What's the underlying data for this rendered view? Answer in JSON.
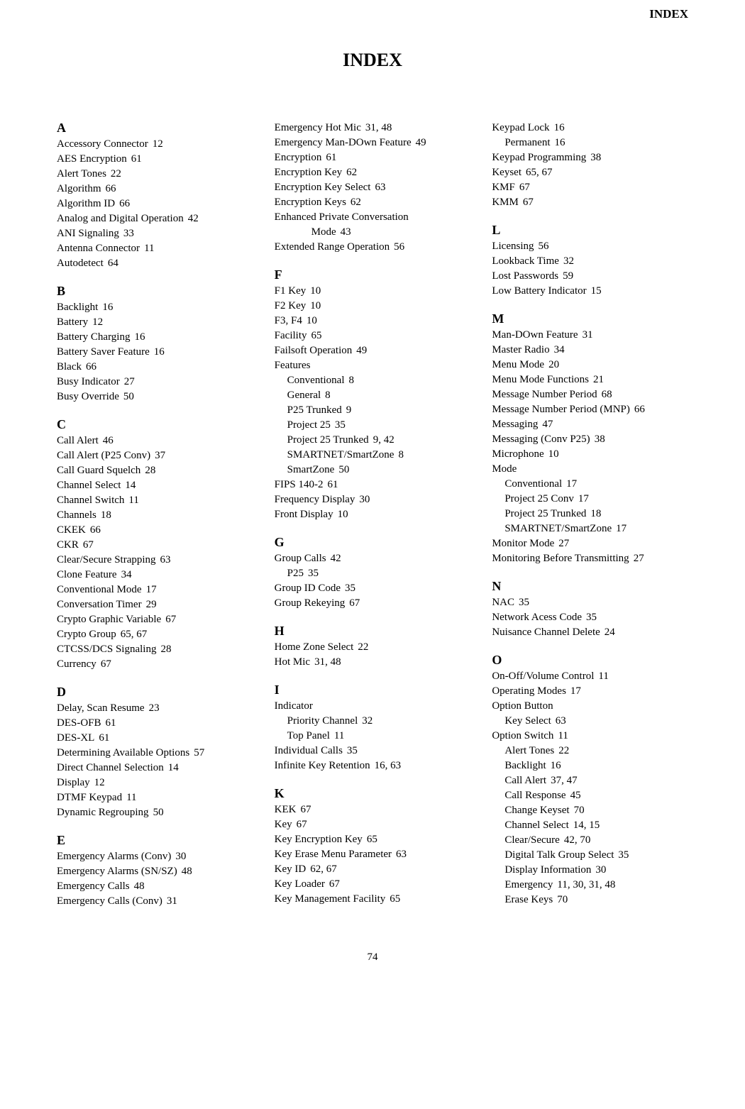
{
  "header": "INDEX",
  "title": "INDEX",
  "pagenum": "74",
  "columns": [
    [
      {
        "type": "letter",
        "text": "A"
      },
      {
        "type": "entry",
        "text": "Accessory Connector",
        "pages": "12"
      },
      {
        "type": "entry",
        "text": "AES Encryption",
        "pages": "61"
      },
      {
        "type": "entry",
        "text": "Alert Tones",
        "pages": "22"
      },
      {
        "type": "entry",
        "text": "Algorithm",
        "pages": "66"
      },
      {
        "type": "entry",
        "text": "Algorithm ID",
        "pages": "66"
      },
      {
        "type": "entry",
        "text": "Analog and Digital Operation",
        "pages": "42"
      },
      {
        "type": "entry",
        "text": "ANI Signaling",
        "pages": "33"
      },
      {
        "type": "entry",
        "text": "Antenna Connector",
        "pages": "11"
      },
      {
        "type": "entry",
        "text": "Autodetect",
        "pages": "64"
      },
      {
        "type": "letter",
        "text": "B"
      },
      {
        "type": "entry",
        "text": "Backlight",
        "pages": "16"
      },
      {
        "type": "entry",
        "text": "Battery",
        "pages": "12"
      },
      {
        "type": "entry",
        "text": "Battery Charging",
        "pages": "16"
      },
      {
        "type": "entry",
        "text": "Battery Saver Feature",
        "pages": "16"
      },
      {
        "type": "entry",
        "text": "Black",
        "pages": "66"
      },
      {
        "type": "entry",
        "text": "Busy Indicator",
        "pages": "27"
      },
      {
        "type": "entry",
        "text": "Busy Override",
        "pages": "50"
      },
      {
        "type": "letter",
        "text": "C"
      },
      {
        "type": "entry",
        "text": "Call Alert",
        "pages": "46"
      },
      {
        "type": "entry",
        "text": "Call Alert (P25 Conv)",
        "pages": "37"
      },
      {
        "type": "entry",
        "text": "Call Guard Squelch",
        "pages": "28"
      },
      {
        "type": "entry",
        "text": "Channel Select",
        "pages": "14"
      },
      {
        "type": "entry",
        "text": "Channel Switch",
        "pages": "11"
      },
      {
        "type": "entry",
        "text": "Channels",
        "pages": "18"
      },
      {
        "type": "entry",
        "text": "CKEK",
        "pages": "66"
      },
      {
        "type": "entry",
        "text": "CKR",
        "pages": "67"
      },
      {
        "type": "entry",
        "text": "Clear/Secure Strapping",
        "pages": "63"
      },
      {
        "type": "entry",
        "text": "Clone Feature",
        "pages": "34"
      },
      {
        "type": "entry",
        "text": "Conventional Mode",
        "pages": "17"
      },
      {
        "type": "entry",
        "text": "Conversation Timer",
        "pages": "29"
      },
      {
        "type": "entry",
        "text": "Crypto Graphic Variable",
        "pages": "67"
      },
      {
        "type": "entry",
        "text": "Crypto Group",
        "pages": "65, 67"
      },
      {
        "type": "entry",
        "text": "CTCSS/DCS Signaling",
        "pages": "28"
      },
      {
        "type": "entry",
        "text": "Currency",
        "pages": "67"
      },
      {
        "type": "letter",
        "text": "D"
      },
      {
        "type": "entry",
        "text": "Delay, Scan Resume",
        "pages": "23"
      },
      {
        "type": "entry",
        "text": "DES-OFB",
        "pages": "61"
      },
      {
        "type": "entry",
        "text": "DES-XL",
        "pages": "61"
      },
      {
        "type": "entry",
        "text": "Determining Available Options",
        "pages": "57"
      },
      {
        "type": "entry",
        "text": "Direct Channel Selection",
        "pages": "14"
      },
      {
        "type": "entry",
        "text": "Display",
        "pages": "12"
      },
      {
        "type": "entry",
        "text": "DTMF Keypad",
        "pages": "11"
      },
      {
        "type": "entry",
        "text": "Dynamic Regrouping",
        "pages": "50"
      },
      {
        "type": "letter",
        "text": "E"
      },
      {
        "type": "entry",
        "text": "Emergency Alarms (Conv)",
        "pages": "30"
      },
      {
        "type": "entry",
        "text": "Emergency Alarms (SN/SZ)",
        "pages": "48"
      },
      {
        "type": "entry",
        "text": "Emergency Calls",
        "pages": "48"
      },
      {
        "type": "entry",
        "text": "Emergency Calls (Conv)",
        "pages": "31"
      }
    ],
    [
      {
        "type": "entry",
        "text": "Emergency Hot Mic",
        "pages": "31, 48"
      },
      {
        "type": "entry",
        "text": "Emergency Man-DOwn Feature",
        "pages": "49"
      },
      {
        "type": "entry",
        "text": "Encryption",
        "pages": "61"
      },
      {
        "type": "entry",
        "text": "Encryption Key",
        "pages": "62"
      },
      {
        "type": "entry",
        "text": "Encryption Key Select",
        "pages": "63"
      },
      {
        "type": "entry",
        "text": "Encryption Keys",
        "pages": "62"
      },
      {
        "type": "entry",
        "text": "Enhanced Private Conversation",
        "pages": ""
      },
      {
        "type": "entry",
        "indent": 2,
        "text": "Mode",
        "pages": "43"
      },
      {
        "type": "entry",
        "text": "Extended Range Operation",
        "pages": "56"
      },
      {
        "type": "letter",
        "text": "F"
      },
      {
        "type": "entry",
        "text": "F1 Key",
        "pages": "10"
      },
      {
        "type": "entry",
        "text": "F2 Key",
        "pages": "10"
      },
      {
        "type": "entry",
        "text": "F3, F4",
        "pages": "10"
      },
      {
        "type": "entry",
        "text": "Facility",
        "pages": "65"
      },
      {
        "type": "entry",
        "text": "Failsoft Operation",
        "pages": "49"
      },
      {
        "type": "entry",
        "text": "Features",
        "pages": ""
      },
      {
        "type": "entry",
        "indent": 1,
        "text": "Conventional",
        "pages": "8"
      },
      {
        "type": "entry",
        "indent": 1,
        "text": "General",
        "pages": "8"
      },
      {
        "type": "entry",
        "indent": 1,
        "text": "P25 Trunked",
        "pages": "9"
      },
      {
        "type": "entry",
        "indent": 1,
        "text": "Project 25",
        "pages": "35"
      },
      {
        "type": "entry",
        "indent": 1,
        "text": "Project 25 Trunked",
        "pages": "9, 42"
      },
      {
        "type": "entry",
        "indent": 1,
        "text": "SMARTNET/SmartZone",
        "pages": "8"
      },
      {
        "type": "entry",
        "indent": 1,
        "text": "SmartZone",
        "pages": "50"
      },
      {
        "type": "entry",
        "text": "FIPS 140-2",
        "pages": "61"
      },
      {
        "type": "entry",
        "text": "Frequency Display",
        "pages": "30"
      },
      {
        "type": "entry",
        "text": "Front Display",
        "pages": "10"
      },
      {
        "type": "letter",
        "text": "G"
      },
      {
        "type": "entry",
        "text": "Group Calls",
        "pages": "42"
      },
      {
        "type": "entry",
        "indent": 1,
        "text": "P25",
        "pages": "35"
      },
      {
        "type": "entry",
        "text": "Group ID Code",
        "pages": "35"
      },
      {
        "type": "entry",
        "text": "Group Rekeying",
        "pages": "67"
      },
      {
        "type": "letter",
        "text": "H"
      },
      {
        "type": "entry",
        "text": "Home Zone Select",
        "pages": "22"
      },
      {
        "type": "entry",
        "text": "Hot Mic",
        "pages": "31, 48"
      },
      {
        "type": "letter",
        "text": "I"
      },
      {
        "type": "entry",
        "text": "Indicator",
        "pages": ""
      },
      {
        "type": "entry",
        "indent": 1,
        "text": "Priority Channel",
        "pages": "32"
      },
      {
        "type": "entry",
        "indent": 1,
        "text": "Top Panel",
        "pages": "11"
      },
      {
        "type": "entry",
        "text": "Individual Calls",
        "pages": "35"
      },
      {
        "type": "entry",
        "text": "Infinite Key Retention",
        "pages": "16, 63"
      },
      {
        "type": "letter",
        "text": "K"
      },
      {
        "type": "entry",
        "text": "KEK",
        "pages": "67"
      },
      {
        "type": "entry",
        "text": "Key",
        "pages": "67"
      },
      {
        "type": "entry",
        "text": "Key Encryption Key",
        "pages": "65"
      },
      {
        "type": "entry",
        "text": "Key Erase Menu Parameter",
        "pages": "63"
      },
      {
        "type": "entry",
        "text": "Key ID",
        "pages": "62, 67"
      },
      {
        "type": "entry",
        "text": "Key Loader",
        "pages": "67"
      },
      {
        "type": "entry",
        "text": "Key Management Facility",
        "pages": "65"
      }
    ],
    [
      {
        "type": "entry",
        "text": "Keypad Lock",
        "pages": "16"
      },
      {
        "type": "entry",
        "indent": 1,
        "text": "Permanent",
        "pages": "16"
      },
      {
        "type": "entry",
        "text": "Keypad Programming",
        "pages": "38"
      },
      {
        "type": "entry",
        "text": "Keyset",
        "pages": "65, 67"
      },
      {
        "type": "entry",
        "text": "KMF",
        "pages": "67"
      },
      {
        "type": "entry",
        "text": "KMM",
        "pages": "67"
      },
      {
        "type": "letter",
        "text": "L"
      },
      {
        "type": "entry",
        "text": "Licensing",
        "pages": "56"
      },
      {
        "type": "entry",
        "text": "Lookback Time",
        "pages": "32"
      },
      {
        "type": "entry",
        "text": "Lost Passwords",
        "pages": "59"
      },
      {
        "type": "entry",
        "text": "Low Battery Indicator",
        "pages": "15"
      },
      {
        "type": "letter",
        "text": "M"
      },
      {
        "type": "entry",
        "text": "Man-DOwn Feature",
        "pages": "31"
      },
      {
        "type": "entry",
        "text": "Master Radio",
        "pages": "34"
      },
      {
        "type": "entry",
        "text": "Menu Mode",
        "pages": "20"
      },
      {
        "type": "entry",
        "text": "Menu Mode Functions",
        "pages": "21"
      },
      {
        "type": "entry",
        "text": "Message Number Period",
        "pages": "68"
      },
      {
        "type": "entry",
        "text": "Message Number Period (MNP)",
        "pages": "66"
      },
      {
        "type": "entry",
        "text": "Messaging",
        "pages": "47"
      },
      {
        "type": "entry",
        "text": "Messaging (Conv P25)",
        "pages": "38"
      },
      {
        "type": "entry",
        "text": "Microphone",
        "pages": "10"
      },
      {
        "type": "entry",
        "text": "Mode",
        "pages": ""
      },
      {
        "type": "entry",
        "indent": 1,
        "text": "Conventional",
        "pages": "17"
      },
      {
        "type": "entry",
        "indent": 1,
        "text": "Project 25 Conv",
        "pages": "17"
      },
      {
        "type": "entry",
        "indent": 1,
        "text": "Project 25 Trunked",
        "pages": "18"
      },
      {
        "type": "entry",
        "indent": 1,
        "text": "SMARTNET/SmartZone",
        "pages": "17"
      },
      {
        "type": "entry",
        "text": "Monitor Mode",
        "pages": "27"
      },
      {
        "type": "entry",
        "text": "Monitoring Before Transmitting",
        "pages": "27"
      },
      {
        "type": "letter",
        "text": "N"
      },
      {
        "type": "entry",
        "text": "NAC",
        "pages": "35"
      },
      {
        "type": "entry",
        "text": "Network Acess Code",
        "pages": "35"
      },
      {
        "type": "entry",
        "text": "Nuisance Channel Delete",
        "pages": "24"
      },
      {
        "type": "letter",
        "text": "O"
      },
      {
        "type": "entry",
        "text": "On-Off/Volume Control",
        "pages": "11"
      },
      {
        "type": "entry",
        "text": "Operating Modes",
        "pages": "17"
      },
      {
        "type": "entry",
        "text": "Option Button",
        "pages": ""
      },
      {
        "type": "entry",
        "indent": 1,
        "text": "Key Select",
        "pages": "63"
      },
      {
        "type": "entry",
        "text": "Option Switch",
        "pages": "11"
      },
      {
        "type": "entry",
        "indent": 1,
        "text": "Alert Tones",
        "pages": "22"
      },
      {
        "type": "entry",
        "indent": 1,
        "text": "Backlight",
        "pages": "16"
      },
      {
        "type": "entry",
        "indent": 1,
        "text": "Call Alert",
        "pages": "37, 47"
      },
      {
        "type": "entry",
        "indent": 1,
        "text": "Call Response",
        "pages": "45"
      },
      {
        "type": "entry",
        "indent": 1,
        "text": "Change Keyset",
        "pages": "70"
      },
      {
        "type": "entry",
        "indent": 1,
        "text": "Channel Select",
        "pages": "14, 15"
      },
      {
        "type": "entry",
        "indent": 1,
        "text": "Clear/Secure",
        "pages": "42, 70"
      },
      {
        "type": "entry",
        "indent": 1,
        "text": "Digital Talk Group Select",
        "pages": "35"
      },
      {
        "type": "entry",
        "indent": 1,
        "text": "Display Information",
        "pages": "30"
      },
      {
        "type": "entry",
        "indent": 1,
        "text": "Emergency",
        "pages": "11, 30, 31, 48"
      },
      {
        "type": "entry",
        "indent": 1,
        "text": "Erase Keys",
        "pages": "70"
      }
    ]
  ]
}
